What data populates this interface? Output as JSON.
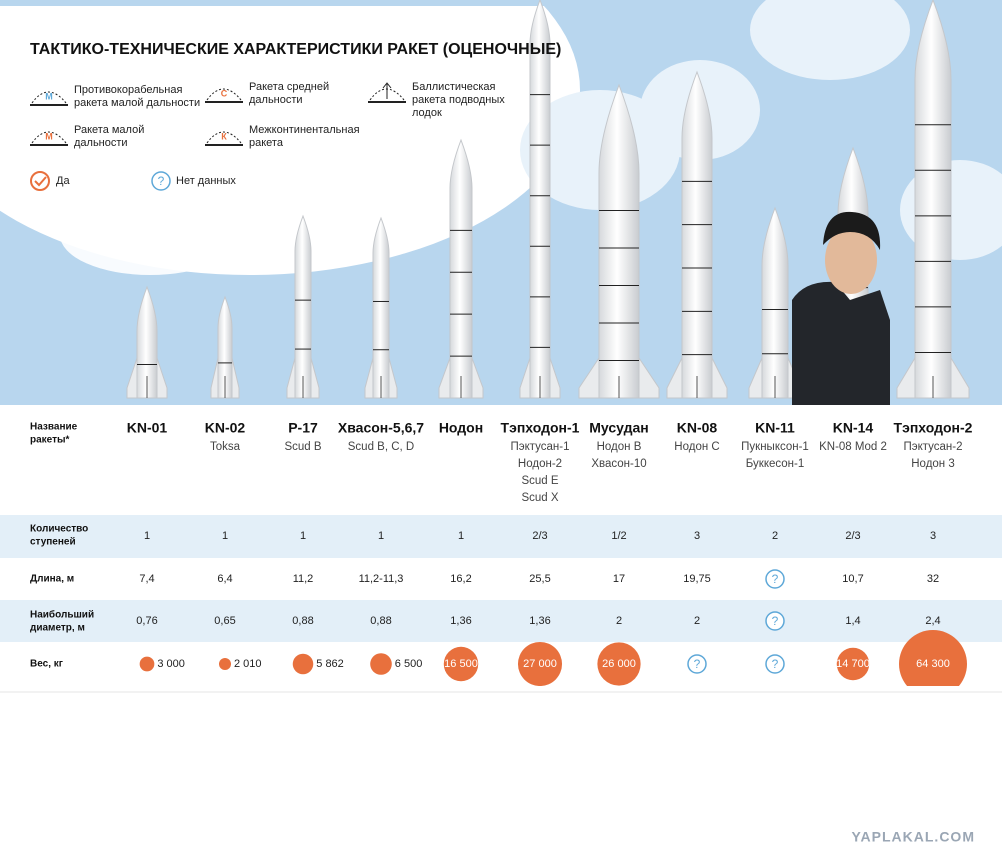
{
  "title": "ТАКТИКО-ТЕХНИЧЕСКИЕ ХАРАКТЕРИСТИКИ РАКЕТ (ОЦЕНОЧНЫЕ)",
  "legend": [
    {
      "icon": "М",
      "lines": [
        "Противокорабельная",
        "ракета малой дальности"
      ]
    },
    {
      "icon": "С",
      "lines": [
        "Ракета средней",
        "дальности"
      ]
    },
    {
      "lines": [
        "Баллистическая",
        "ракета подводных",
        "лодок"
      ]
    },
    {
      "icon": "М",
      "lines": [
        "Ракета малой",
        "дальности"
      ]
    },
    {
      "icon": "К",
      "lines": [
        "Межконтинентальная",
        "ракета"
      ]
    },
    {
      "lines": [
        "Да"
      ]
    },
    {
      "icon": "?",
      "lines": [
        "Нет данных"
      ]
    }
  ],
  "row_headers": [
    [
      "Название",
      "ракеты*"
    ],
    [
      "Количество",
      "ступеней"
    ],
    [
      "Длина, м"
    ],
    [
      "Наибольший",
      "диаметр, м"
    ],
    [
      "Вес, кг"
    ]
  ],
  "missiles": [
    {
      "name": "KN-01",
      "aliases": [],
      "stages": "1",
      "length": "7,4",
      "diameter": "0,76",
      "weight": {
        "value": 3000,
        "label": "3 000"
      }
    },
    {
      "name": "KN-02",
      "aliases": [
        "Toksa"
      ],
      "stages": "1",
      "length": "6,4",
      "diameter": "0,65",
      "weight": {
        "value": 2010,
        "label": "2 010"
      }
    },
    {
      "name": "Р-17",
      "aliases": [
        "Scud B"
      ],
      "stages": "1",
      "length": "11,2",
      "diameter": "0,88",
      "weight": {
        "value": 5862,
        "label": "5 862"
      }
    },
    {
      "name": "Хвасон-5,6,7",
      "aliases": [
        "Scud B, C, D"
      ],
      "stages": "1",
      "length": "11,2-11,3",
      "diameter": "0,88",
      "weight": {
        "value": 6500,
        "label": "6 500"
      }
    },
    {
      "name": "Нодон",
      "aliases": [],
      "stages": "1",
      "length": "16,2",
      "diameter": "1,36",
      "weight": {
        "value": 16500,
        "label": "16 500"
      }
    },
    {
      "name": "Тэпходон-1",
      "aliases": [
        "Пэктусан-1",
        "Нодон-2",
        "Scud E",
        "Scud X"
      ],
      "stages": "2/3",
      "length": "25,5",
      "diameter": "1,36",
      "weight": {
        "value": 27000,
        "label": "27 000"
      }
    },
    {
      "name": "Мусудан",
      "aliases": [
        "Нодон B",
        "Хвасон-10"
      ],
      "stages": "1/2",
      "length": "17",
      "diameter": "2",
      "weight": {
        "value": 26000,
        "label": "26 000"
      }
    },
    {
      "name": "KN-08",
      "aliases": [
        "Нодон С"
      ],
      "stages": "3",
      "length": "19,75",
      "diameter": "2",
      "weight": "?"
    },
    {
      "name": "KN-11",
      "aliases": [
        "Пукныксон-1",
        "Буккесон-1"
      ],
      "stages": "2",
      "length": "?",
      "diameter": "?",
      "weight": "?"
    },
    {
      "name": "KN-14",
      "aliases": [
        "KN-08 Mod 2"
      ],
      "stages": "2/3",
      "length": "10,7",
      "diameter": "1,4",
      "weight": {
        "value": 14700,
        "label": "14 700"
      }
    },
    {
      "name": "Тэпходон-2",
      "aliases": [
        "Пэктусан-2",
        "Нодон 3"
      ],
      "stages": "3",
      "length": "32",
      "diameter": "2,4",
      "weight": {
        "value": 64300,
        "label": "64 300"
      }
    }
  ],
  "watermark": "YAPLAKAL.COM"
}
